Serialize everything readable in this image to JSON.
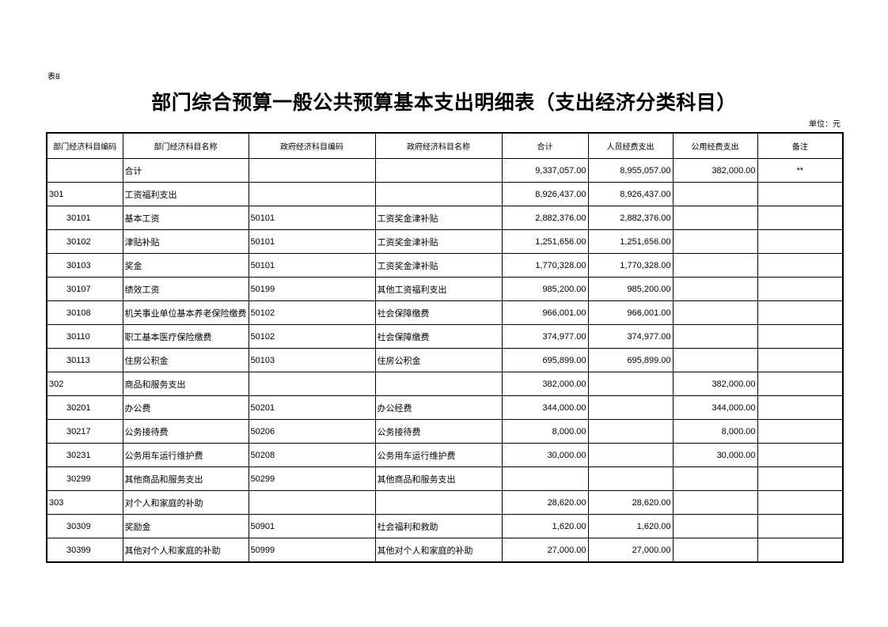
{
  "table_label": "表8",
  "title": "部门综合预算一般公共预算基本支出明细表（支出经济分类科目）",
  "unit": "单位：元",
  "columns": [
    "部门经济科目编码",
    "部门经济科目名称",
    "政府经济科目编码",
    "政府经济科目名称",
    "合计",
    "人员经费支出",
    "公用经费支出",
    "备注"
  ],
  "rows": [
    {
      "code": "",
      "name": "合计",
      "gcode": "",
      "gname": "",
      "total": "9,337,057.00",
      "personnel": "8,955,057.00",
      "public": "382,000.00",
      "note": "**",
      "level": 0
    },
    {
      "code": "301",
      "name": "工资福利支出",
      "gcode": "",
      "gname": "",
      "total": "8,926,437.00",
      "personnel": "8,926,437.00",
      "public": "",
      "note": "",
      "level": 1
    },
    {
      "code": "30101",
      "name": "基本工资",
      "gcode": "50101",
      "gname": "工资奖金津补贴",
      "total": "2,882,376.00",
      "personnel": "2,882,376.00",
      "public": "",
      "note": "",
      "level": 2
    },
    {
      "code": "30102",
      "name": "津贴补贴",
      "gcode": "50101",
      "gname": "工资奖金津补贴",
      "total": "1,251,656.00",
      "personnel": "1,251,656.00",
      "public": "",
      "note": "",
      "level": 2
    },
    {
      "code": "30103",
      "name": "奖金",
      "gcode": "50101",
      "gname": "工资奖金津补贴",
      "total": "1,770,328.00",
      "personnel": "1,770,328.00",
      "public": "",
      "note": "",
      "level": 2
    },
    {
      "code": "30107",
      "name": "绩效工资",
      "gcode": "50199",
      "gname": "其他工资福利支出",
      "total": "985,200.00",
      "personnel": "985,200.00",
      "public": "",
      "note": "",
      "level": 2
    },
    {
      "code": "30108",
      "name": "机关事业单位基本养老保险缴费",
      "gcode": "50102",
      "gname": "社会保障缴费",
      "total": "966,001.00",
      "personnel": "966,001.00",
      "public": "",
      "note": "",
      "level": 2
    },
    {
      "code": "30110",
      "name": "职工基本医疗保险缴费",
      "gcode": "50102",
      "gname": "社会保障缴费",
      "total": "374,977.00",
      "personnel": "374,977.00",
      "public": "",
      "note": "",
      "level": 2
    },
    {
      "code": "30113",
      "name": "住房公积金",
      "gcode": "50103",
      "gname": "住房公积金",
      "total": "695,899.00",
      "personnel": "695,899.00",
      "public": "",
      "note": "",
      "level": 2
    },
    {
      "code": "302",
      "name": "商品和服务支出",
      "gcode": "",
      "gname": "",
      "total": "382,000.00",
      "personnel": "",
      "public": "382,000.00",
      "note": "",
      "level": 1
    },
    {
      "code": "30201",
      "name": "办公费",
      "gcode": "50201",
      "gname": "办公经费",
      "total": "344,000.00",
      "personnel": "",
      "public": "344,000.00",
      "note": "",
      "level": 2
    },
    {
      "code": "30217",
      "name": "公务接待费",
      "gcode": "50206",
      "gname": "公务接待费",
      "total": "8,000.00",
      "personnel": "",
      "public": "8,000.00",
      "note": "",
      "level": 2
    },
    {
      "code": "30231",
      "name": "公务用车运行维护费",
      "gcode": "50208",
      "gname": "公务用车运行维护费",
      "total": "30,000.00",
      "personnel": "",
      "public": "30,000.00",
      "note": "",
      "level": 2
    },
    {
      "code": "30299",
      "name": "其他商品和服务支出",
      "gcode": "50299",
      "gname": "其他商品和服务支出",
      "total": "",
      "personnel": "",
      "public": "",
      "note": "",
      "level": 2
    },
    {
      "code": "303",
      "name": "对个人和家庭的补助",
      "gcode": "",
      "gname": "",
      "total": "28,620.00",
      "personnel": "28,620.00",
      "public": "",
      "note": "",
      "level": 1
    },
    {
      "code": "30309",
      "name": "奖励金",
      "gcode": "50901",
      "gname": "社会福利和救助",
      "total": "1,620.00",
      "personnel": "1,620.00",
      "public": "",
      "note": "",
      "level": 2
    },
    {
      "code": "30399",
      "name": "其他对个人和家庭的补助",
      "gcode": "50999",
      "gname": "其他对个人和家庭的补助",
      "total": "27,000.00",
      "personnel": "27,000.00",
      "public": "",
      "note": "",
      "level": 2
    }
  ]
}
